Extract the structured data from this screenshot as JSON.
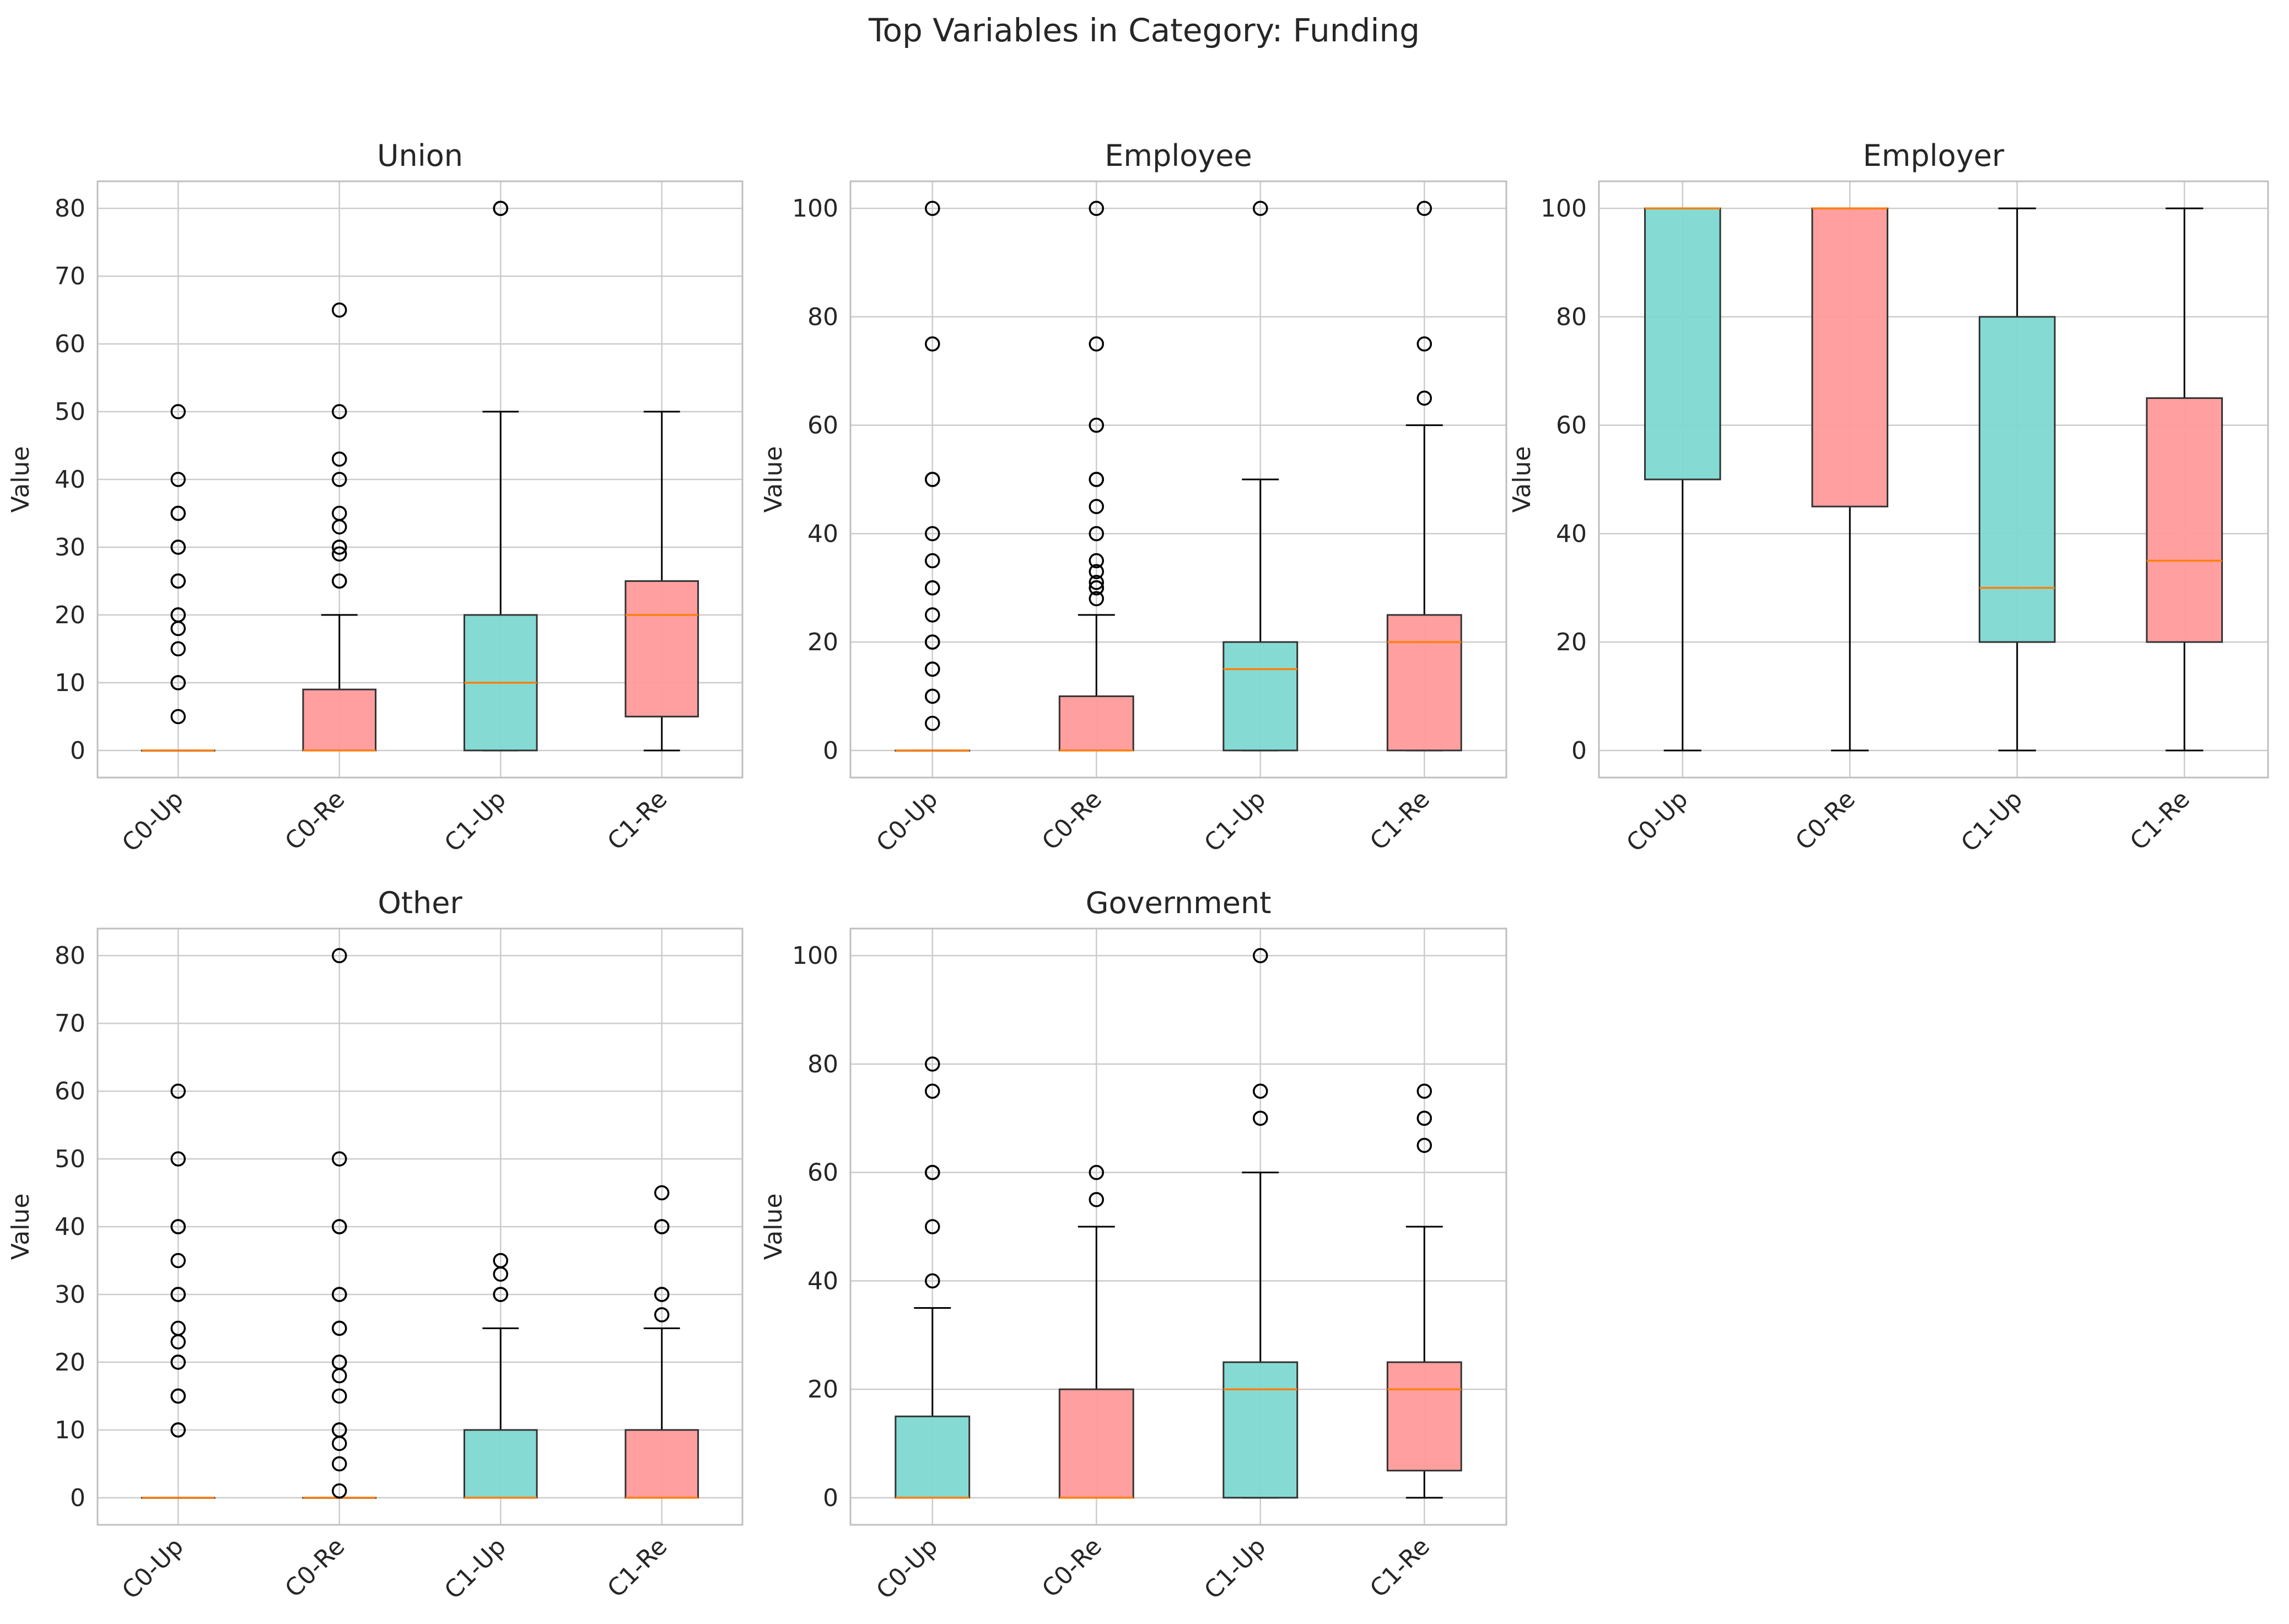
{
  "figure": {
    "title": "Top Variables in Category: Funding"
  },
  "colors": {
    "up": "#7ed9d1",
    "re": "#ff9a9a",
    "median": "#ff7f0e",
    "box_edge": "#333333",
    "whisker": "#000000",
    "grid": "#cccccc",
    "frame": "#bfbfbf"
  },
  "chart_data": [
    {
      "type": "box",
      "title": "Union",
      "ylabel": "Value",
      "categories": [
        "C0-Up",
        "C0-Re",
        "C1-Up",
        "C1-Re"
      ],
      "ylim": [
        -4,
        84
      ],
      "yticks": [
        0,
        10,
        20,
        30,
        40,
        50,
        60,
        70,
        80
      ],
      "boxes": [
        {
          "q1": 0,
          "median": 0,
          "q3": 0,
          "whislo": 0,
          "whishi": 0,
          "fliers": [
            5,
            10,
            10,
            15,
            18,
            20,
            20,
            25,
            25,
            30,
            30,
            35,
            35,
            40,
            50
          ]
        },
        {
          "q1": 0,
          "median": 0,
          "q3": 9,
          "whislo": 0,
          "whishi": 20,
          "fliers": [
            25,
            25,
            29,
            30,
            30,
            33,
            35,
            40,
            43,
            50,
            65
          ]
        },
        {
          "q1": 0,
          "median": 10,
          "q3": 20,
          "whislo": 0,
          "whishi": 50,
          "fliers": [
            80,
            80
          ]
        },
        {
          "q1": 5,
          "median": 20,
          "q3": 25,
          "whislo": 0,
          "whishi": 50,
          "fliers": []
        }
      ]
    },
    {
      "type": "box",
      "title": "Employee",
      "ylabel": "Value",
      "categories": [
        "C0-Up",
        "C0-Re",
        "C1-Up",
        "C1-Re"
      ],
      "ylim": [
        -5,
        105
      ],
      "yticks": [
        0,
        20,
        40,
        60,
        80,
        100
      ],
      "boxes": [
        {
          "q1": 0,
          "median": 0,
          "q3": 0,
          "whislo": 0,
          "whishi": 0,
          "fliers": [
            5,
            10,
            10,
            15,
            15,
            20,
            20,
            25,
            30,
            30,
            35,
            40,
            50,
            50,
            75,
            100
          ]
        },
        {
          "q1": 0,
          "median": 0,
          "q3": 10,
          "whislo": 0,
          "whishi": 25,
          "fliers": [
            28,
            30,
            30,
            31,
            33,
            35,
            40,
            45,
            50,
            50,
            60,
            75,
            100
          ]
        },
        {
          "q1": 0,
          "median": 15,
          "q3": 20,
          "whislo": 0,
          "whishi": 50,
          "fliers": [
            100
          ]
        },
        {
          "q1": 0,
          "median": 20,
          "q3": 25,
          "whislo": 0,
          "whishi": 60,
          "fliers": [
            65,
            75,
            100
          ]
        }
      ]
    },
    {
      "type": "box",
      "title": "Employer",
      "ylabel": "Value",
      "categories": [
        "C0-Up",
        "C0-Re",
        "C1-Up",
        "C1-Re"
      ],
      "ylim": [
        -5,
        105
      ],
      "yticks": [
        0,
        20,
        40,
        60,
        80,
        100
      ],
      "boxes": [
        {
          "q1": 50,
          "median": 100,
          "q3": 100,
          "whislo": 0,
          "whishi": 100,
          "fliers": []
        },
        {
          "q1": 45,
          "median": 100,
          "q3": 100,
          "whislo": 0,
          "whishi": 100,
          "fliers": []
        },
        {
          "q1": 20,
          "median": 30,
          "q3": 80,
          "whislo": 0,
          "whishi": 100,
          "fliers": []
        },
        {
          "q1": 20,
          "median": 35,
          "q3": 65,
          "whislo": 0,
          "whishi": 100,
          "fliers": []
        }
      ]
    },
    {
      "type": "box",
      "title": "Other",
      "ylabel": "Value",
      "categories": [
        "C0-Up",
        "C0-Re",
        "C1-Up",
        "C1-Re"
      ],
      "ylim": [
        -4,
        84
      ],
      "yticks": [
        0,
        10,
        20,
        30,
        40,
        50,
        60,
        70,
        80
      ],
      "boxes": [
        {
          "q1": 0,
          "median": 0,
          "q3": 0,
          "whislo": 0,
          "whishi": 0,
          "fliers": [
            10,
            10,
            15,
            15,
            20,
            20,
            23,
            25,
            30,
            30,
            35,
            40,
            40,
            50,
            60
          ]
        },
        {
          "q1": 0,
          "median": 0,
          "q3": 0,
          "whislo": 0,
          "whishi": 0,
          "fliers": [
            1,
            5,
            8,
            10,
            10,
            15,
            18,
            20,
            20,
            25,
            25,
            30,
            30,
            40,
            40,
            50,
            80
          ]
        },
        {
          "q1": 0,
          "median": 0,
          "q3": 10,
          "whislo": 0,
          "whishi": 25,
          "fliers": [
            30,
            30,
            33,
            35
          ]
        },
        {
          "q1": 0,
          "median": 0,
          "q3": 10,
          "whislo": 0,
          "whishi": 25,
          "fliers": [
            27,
            30,
            30,
            40,
            40,
            45
          ]
        }
      ]
    },
    {
      "type": "box",
      "title": "Government",
      "ylabel": "Value",
      "categories": [
        "C0-Up",
        "C0-Re",
        "C1-Up",
        "C1-Re"
      ],
      "ylim": [
        -5,
        105
      ],
      "yticks": [
        0,
        20,
        40,
        60,
        80,
        100
      ],
      "boxes": [
        {
          "q1": 0,
          "median": 0,
          "q3": 15,
          "whislo": 0,
          "whishi": 35,
          "fliers": [
            40,
            50,
            60,
            60,
            75,
            80
          ]
        },
        {
          "q1": 0,
          "median": 0,
          "q3": 20,
          "whislo": 0,
          "whishi": 50,
          "fliers": [
            55,
            60
          ]
        },
        {
          "q1": 0,
          "median": 20,
          "q3": 25,
          "whislo": 0,
          "whishi": 60,
          "fliers": [
            70,
            75,
            100
          ]
        },
        {
          "q1": 5,
          "median": 20,
          "q3": 25,
          "whislo": 0,
          "whishi": 50,
          "fliers": [
            65,
            70,
            75
          ]
        }
      ]
    }
  ]
}
